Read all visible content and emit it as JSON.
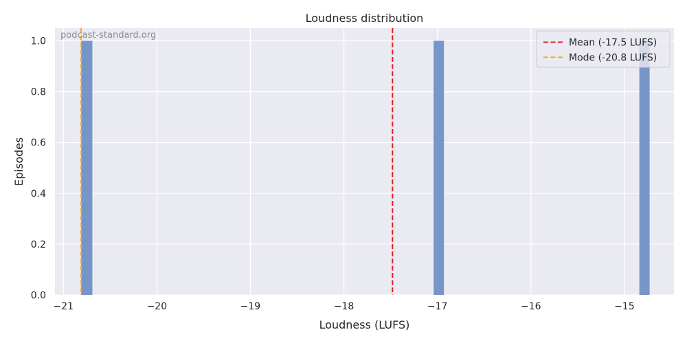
{
  "chart_data": {
    "type": "bar",
    "title": "Loudness distribution",
    "xlabel": "Loudness (LUFS)",
    "ylabel": "Episodes",
    "xlim": [
      -21.09,
      -14.47
    ],
    "ylim": [
      0,
      1.05
    ],
    "xticks": [
      -21,
      -20,
      -19,
      -18,
      -17,
      -16,
      -15
    ],
    "yticks": [
      0.0,
      0.2,
      0.4,
      0.6,
      0.8,
      1.0
    ],
    "grid": true,
    "legend_position": "top-right",
    "watermark": "podcast-standard.org",
    "bars": [
      {
        "x0": -20.81,
        "x1": -20.69,
        "value": 1
      },
      {
        "x0": -17.04,
        "x1": -16.93,
        "value": 1
      },
      {
        "x0": -14.84,
        "x1": -14.73,
        "value": 1
      }
    ],
    "reference_lines": [
      {
        "label": "Mean (-17.5 LUFS)",
        "x": -17.48,
        "color": "#e41a1c"
      },
      {
        "label": "Mode (-20.8 LUFS)",
        "x": -20.81,
        "color": "#f5a623"
      }
    ],
    "colors": {
      "bar": "#7191c4",
      "plot_background": "#eaeaf2",
      "grid": "#ffffff"
    }
  }
}
